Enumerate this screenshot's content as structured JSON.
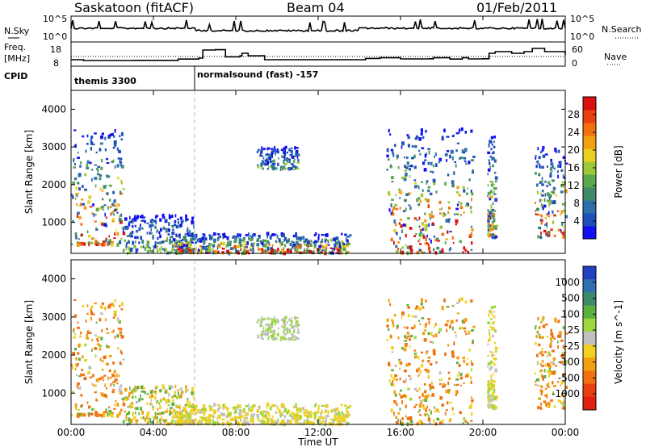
{
  "header": {
    "station": "Saskatoon (fitACF)",
    "beam": "Beam 04",
    "date": "01/Feb/2011"
  },
  "noise_panel": {
    "left_label": "N.Sky",
    "right_label": "N.Search",
    "left_ticks": [
      "10^5",
      "10^0"
    ],
    "right_ticks": [
      "10^5",
      "10^0"
    ]
  },
  "freq_panel": {
    "left_label_1": "Freq.",
    "left_label_2": "[MHz]",
    "right_label": "Nave",
    "left_ticks": [
      "18",
      "8"
    ],
    "right_ticks": [
      "60",
      "0"
    ]
  },
  "cpid": {
    "label": "CPID",
    "mode_1": "themis 3300",
    "mode_2": "normalsound (fast) -157"
  },
  "x_axis": {
    "label": "Time UT",
    "ticks": [
      "00:00",
      "04:00",
      "08:00",
      "12:00",
      "16:00",
      "20:00",
      "00:00"
    ]
  },
  "y_ticks": [
    "1000",
    "2000",
    "3000",
    "4000"
  ],
  "power_panel": {
    "ylabel": "Slant Range [km]"
  },
  "velocity_panel": {
    "ylabel": "Slant Range [km]"
  },
  "power_bar": {
    "label": "Power [dB]",
    "ticks": [
      "4",
      "8",
      "12",
      "16",
      "20",
      "24",
      "28"
    ],
    "colors": [
      "#1010f0",
      "#1c50b8",
      "#2f6fa8",
      "#3f8a6a",
      "#5ca84c",
      "#9cc83a",
      "#e8d020",
      "#f0a010",
      "#f07010",
      "#e84010",
      "#d81010"
    ]
  },
  "velocity_bar": {
    "label": "Velocity [m s^-1]",
    "ticks": [
      "1000",
      "500",
      "100",
      "25",
      "-25",
      "-100",
      "-500",
      "-1000"
    ],
    "colors": [
      "#2040c0",
      "#3070b0",
      "#3f8a6a",
      "#5cb040",
      "#9cd840",
      "#c0c0c0",
      "#f0d020",
      "#f0a010",
      "#f07010",
      "#e84010",
      "#e02010"
    ]
  },
  "chart_data": {
    "type": "heatmap",
    "title": "Saskatoon (fitACF) Beam 04 01/Feb/2011",
    "xlabel": "Time UT",
    "ylabel": "Slant Range [km]",
    "xlim": [
      0,
      24
    ],
    "ylim": [
      180,
      4500
    ],
    "cpid_change_hour": 6.0,
    "frequency_trace_mhz": [
      [
        0,
        11
      ],
      [
        0.6,
        10.5
      ],
      [
        3,
        10.6
      ],
      [
        5.2,
        11.4
      ],
      [
        6.2,
        12
      ],
      [
        6.4,
        17
      ],
      [
        7,
        17.2
      ],
      [
        7.5,
        12.8
      ],
      [
        8.2,
        13.4
      ],
      [
        8.3,
        15
      ],
      [
        8.6,
        13.4
      ],
      [
        9.2,
        13.5
      ],
      [
        9.4,
        11
      ],
      [
        14,
        11
      ],
      [
        14.3,
        11.8
      ],
      [
        15,
        12.2
      ],
      [
        16,
        11.5
      ],
      [
        17.4,
        11.6
      ],
      [
        17.6,
        12.2
      ],
      [
        18.4,
        11.4
      ],
      [
        19,
        12.2
      ],
      [
        19.3,
        11.5
      ],
      [
        20,
        11.6
      ],
      [
        20.3,
        15
      ],
      [
        20.6,
        16
      ],
      [
        21.4,
        15
      ],
      [
        22,
        16
      ],
      [
        22.4,
        18
      ],
      [
        23,
        16
      ],
      [
        24,
        14
      ]
    ],
    "power_db_scale": [
      4,
      28
    ],
    "velocity_scale_m_s": [
      -1000,
      1000
    ],
    "scatter_regions": [
      {
        "t_start": 0.0,
        "t_end": 2.5,
        "range_km": [
          400,
          3500
        ],
        "peak_power_db": 28,
        "velocity_m_s": [
          -500,
          100
        ]
      },
      {
        "t_start": 2.5,
        "t_end": 6.0,
        "range_km": [
          180,
          1200
        ],
        "peak_power_db": 16,
        "velocity_m_s": [
          -200,
          100
        ]
      },
      {
        "t_start": 5.0,
        "t_end": 13.5,
        "range_km": [
          180,
          700
        ],
        "peak_power_db": 28,
        "velocity_m_s": [
          -100,
          25
        ]
      },
      {
        "t_start": 9.0,
        "t_end": 11.0,
        "range_km": [
          2400,
          3000
        ],
        "peak_power_db": 16,
        "velocity_m_s": [
          -25,
          25
        ]
      },
      {
        "t_start": 15.3,
        "t_end": 19.5,
        "range_km": [
          180,
          3500
        ],
        "peak_power_db": 28,
        "velocity_m_s": [
          -500,
          100
        ]
      },
      {
        "t_start": 20.2,
        "t_end": 20.6,
        "range_km": [
          600,
          3300
        ],
        "peak_power_db": 24,
        "velocity_m_s": [
          -100,
          25
        ]
      },
      {
        "t_start": 22.5,
        "t_end": 24.0,
        "range_km": [
          600,
          3000
        ],
        "peak_power_db": 28,
        "velocity_m_s": [
          -500,
          100
        ]
      }
    ]
  }
}
